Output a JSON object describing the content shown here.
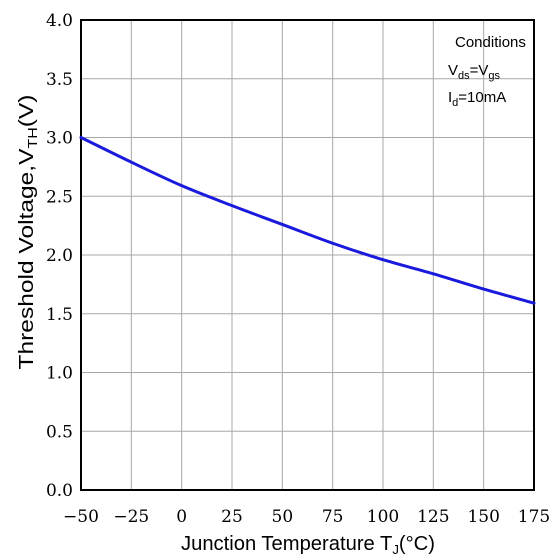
{
  "chart_data": {
    "type": "line",
    "xlabel": {
      "main": "Junction Temperature T",
      "sub": "J",
      "tail": "(°C)"
    },
    "ylabel": {
      "main": "Threshold Voltage,V",
      "sub": "TH",
      "tail": "(V)"
    },
    "xlim": [
      -50,
      175
    ],
    "ylim": [
      0,
      4
    ],
    "x_ticks": [
      "-50",
      "-25",
      "0",
      "25",
      "50",
      "75",
      "100",
      "125",
      "150",
      "175"
    ],
    "y_ticks": [
      "0.0",
      "0.5",
      "1.0",
      "1.5",
      "2.0",
      "2.5",
      "3.0",
      "3.5",
      "4.0"
    ],
    "grid": true,
    "series": [
      {
        "color": "#1a1adc",
        "x": [
          -50,
          -25,
          0,
          25,
          50,
          75,
          100,
          125,
          150,
          175
        ],
        "y": [
          3.0,
          2.79,
          2.59,
          2.42,
          2.26,
          2.1,
          1.96,
          1.84,
          1.71,
          1.59
        ]
      }
    ],
    "annotation": {
      "title": "Conditions",
      "line1": {
        "a": "V",
        "a_sub": "ds",
        "eq": "=V",
        "b_sub": "gs"
      },
      "line2": {
        "a": "I",
        "a_sub": "d",
        "rest": "=10mA"
      }
    }
  }
}
